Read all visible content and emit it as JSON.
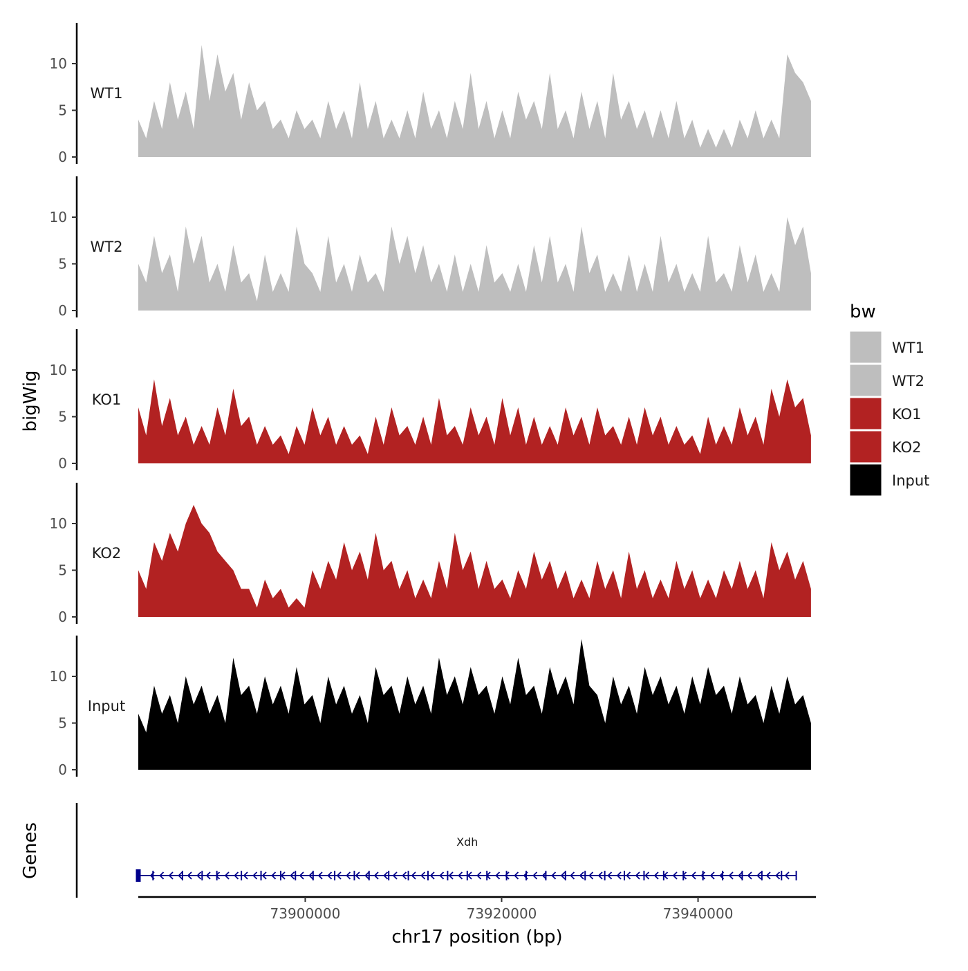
{
  "chart_data": {
    "type": "area",
    "ylabel": "bigWig",
    "xlabel": "chr17 position (bp)",
    "xlim": [
      73883000,
      73952000
    ],
    "x_ticks": [
      73900000,
      73920000,
      73940000
    ],
    "x_tick_labels": [
      "73900000",
      "73920000",
      "73940000"
    ],
    "ylim": [
      0,
      14.5
    ],
    "y_ticks": [
      0,
      5,
      10
    ],
    "y_tick_labels": [
      "0",
      "5",
      "10"
    ],
    "track_range": [
      73883000,
      73951500
    ],
    "series": [
      {
        "name": "WT1",
        "color": "#bebebe",
        "values": [
          4,
          2,
          6,
          3,
          8,
          4,
          7,
          3,
          12,
          6,
          11,
          7,
          9,
          4,
          8,
          5,
          6,
          3,
          4,
          2,
          5,
          3,
          4,
          2,
          6,
          3,
          5,
          2,
          8,
          3,
          6,
          2,
          4,
          2,
          5,
          2,
          7,
          3,
          5,
          2,
          6,
          3,
          9,
          3,
          6,
          2,
          5,
          2,
          7,
          4,
          6,
          3,
          9,
          3,
          5,
          2,
          7,
          3,
          6,
          2,
          9,
          4,
          6,
          3,
          5,
          2,
          5,
          2,
          6,
          2,
          4,
          1,
          3,
          1,
          3,
          1,
          4,
          2,
          5,
          2,
          4,
          2,
          11,
          9,
          8,
          6
        ]
      },
      {
        "name": "WT2",
        "color": "#bebebe",
        "values": [
          5,
          3,
          8,
          4,
          6,
          2,
          9,
          5,
          8,
          3,
          5,
          2,
          7,
          3,
          4,
          1,
          6,
          2,
          4,
          2,
          9,
          5,
          4,
          2,
          8,
          3,
          5,
          2,
          6,
          3,
          4,
          2,
          9,
          5,
          8,
          4,
          7,
          3,
          5,
          2,
          6,
          2,
          5,
          2,
          7,
          3,
          4,
          2,
          5,
          2,
          7,
          3,
          8,
          3,
          5,
          2,
          9,
          4,
          6,
          2,
          4,
          2,
          6,
          2,
          5,
          2,
          8,
          3,
          5,
          2,
          4,
          2,
          8,
          3,
          4,
          2,
          7,
          3,
          6,
          2,
          4,
          2,
          10,
          7,
          9,
          4
        ]
      },
      {
        "name": "KO1",
        "color": "#b22222",
        "values": [
          6,
          3,
          9,
          4,
          7,
          3,
          5,
          2,
          4,
          2,
          6,
          3,
          8,
          4,
          5,
          2,
          4,
          2,
          3,
          1,
          4,
          2,
          6,
          3,
          5,
          2,
          4,
          2,
          3,
          1,
          5,
          2,
          6,
          3,
          4,
          2,
          5,
          2,
          7,
          3,
          4,
          2,
          6,
          3,
          5,
          2,
          7,
          3,
          6,
          2,
          5,
          2,
          4,
          2,
          6,
          3,
          5,
          2,
          6,
          3,
          4,
          2,
          5,
          2,
          6,
          3,
          5,
          2,
          4,
          2,
          3,
          1,
          5,
          2,
          4,
          2,
          6,
          3,
          5,
          2,
          8,
          5,
          9,
          6,
          7,
          3
        ]
      },
      {
        "name": "KO2",
        "color": "#b22222",
        "values": [
          5,
          3,
          8,
          6,
          9,
          7,
          10,
          12,
          10,
          9,
          7,
          6,
          5,
          3,
          3,
          1,
          4,
          2,
          3,
          1,
          2,
          1,
          5,
          3,
          6,
          4,
          8,
          5,
          7,
          4,
          9,
          5,
          6,
          3,
          5,
          2,
          4,
          2,
          6,
          3,
          9,
          5,
          7,
          3,
          6,
          3,
          4,
          2,
          5,
          3,
          7,
          4,
          6,
          3,
          5,
          2,
          4,
          2,
          6,
          3,
          5,
          2,
          7,
          3,
          5,
          2,
          4,
          2,
          6,
          3,
          5,
          2,
          4,
          2,
          5,
          3,
          6,
          3,
          5,
          2,
          8,
          5,
          7,
          4,
          6,
          3
        ]
      },
      {
        "name": "Input",
        "color": "#000000",
        "values": [
          6,
          4,
          9,
          6,
          8,
          5,
          10,
          7,
          9,
          6,
          8,
          5,
          12,
          8,
          9,
          6,
          10,
          7,
          9,
          6,
          11,
          7,
          8,
          5,
          10,
          7,
          9,
          6,
          8,
          5,
          11,
          8,
          9,
          6,
          10,
          7,
          9,
          6,
          12,
          8,
          10,
          7,
          11,
          8,
          9,
          6,
          10,
          7,
          12,
          8,
          9,
          6,
          11,
          8,
          10,
          7,
          14,
          9,
          8,
          5,
          10,
          7,
          9,
          6,
          11,
          8,
          10,
          7,
          9,
          6,
          10,
          7,
          11,
          8,
          9,
          6,
          10,
          7,
          8,
          5,
          9,
          6,
          10,
          7,
          8,
          5
        ]
      }
    ],
    "legend": {
      "title": "bw",
      "position": "right"
    },
    "gene_track": {
      "label": "Genes",
      "genes": [
        {
          "name": "Xdh",
          "start": 73883000,
          "end": 73950000,
          "strand": "-",
          "color": "#00008b"
        }
      ],
      "exons": [
        73883000,
        73884500,
        73887500,
        73889500,
        73891000,
        73893500,
        73895500,
        73897500,
        73899000,
        73900800,
        73903000,
        73905000,
        73906500,
        73908500,
        73910500,
        73912500,
        73914500,
        73916500,
        73918500,
        73920500,
        73922500,
        73924500,
        73926500,
        73928500,
        73930500,
        73932500,
        73934500,
        73936500,
        73938500,
        73940500,
        73942500,
        73944500,
        73946500,
        73948500,
        73950000
      ]
    }
  }
}
